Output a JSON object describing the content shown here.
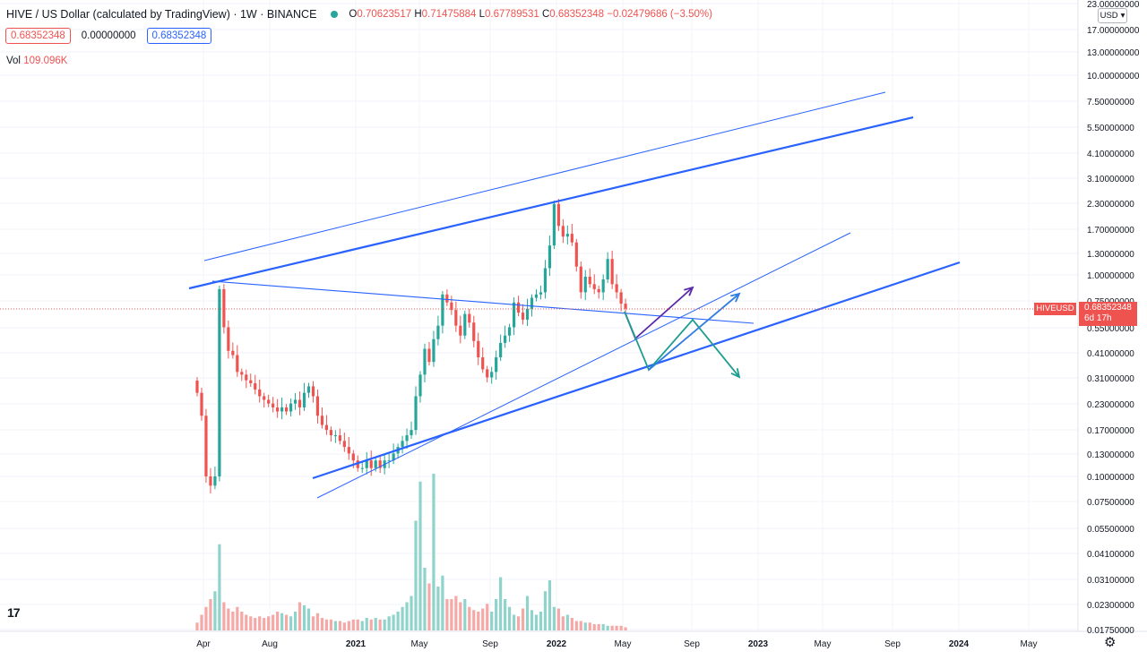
{
  "legend": {
    "symbol": "HIVE / US Dollar (calculated by TradingView) · 1W · BINANCE",
    "o_label": "O",
    "o": "0.70623517",
    "h_label": "H",
    "h": "0.71475884",
    "l_label": "L",
    "l": "0.67789531",
    "c_label": "C",
    "c": "0.68352348",
    "change": "−0.02479686 (−3.50%)"
  },
  "price_boxes": {
    "bid": "0.68352348",
    "spread": "0.00000000",
    "ask": "0.68352348"
  },
  "volume": {
    "label": "Vol",
    "value": "109.096K"
  },
  "currency_selector": "USD",
  "last_price": {
    "symbol": "HIVEUSD",
    "price": "0.68352348",
    "countdown": "6d 17h"
  },
  "colors": {
    "up": "#26a69a",
    "down": "#ef5350",
    "up_volume": "#8fd3cb",
    "down_volume": "#f5a8a6",
    "trendline": "#2962ff",
    "arrow_purple": "#5b2ba8",
    "arrow_green": "#1e9e8f",
    "arrow_blue": "#2f7de1"
  },
  "chart_data": {
    "type": "candlestick",
    "title": "HIVE / US Dollar (calculated by TradingView)",
    "interval": "1W",
    "exchange": "BINANCE",
    "y_scale": "log",
    "grid": true,
    "y_ticks": [
      "23.00000000",
      "17.00000000",
      "13.00000000",
      "10.00000000",
      "7.50000000",
      "5.50000000",
      "4.10000000",
      "3.10000000",
      "2.30000000",
      "1.70000000",
      "1.30000000",
      "1.00000000",
      "0.75000000",
      "0.55000000",
      "0.41000000",
      "0.31000000",
      "0.23000000",
      "0.17000000",
      "0.13000000",
      "0.10000000",
      "0.07500000",
      "0.05500000",
      "0.04100000",
      "0.03100000",
      "0.02300000",
      "0.01750000"
    ],
    "x_ticks": [
      "Apr",
      "Aug",
      "2021",
      "May",
      "Sep",
      "2022",
      "May",
      "Sep",
      "2023",
      "May",
      "Sep",
      "2024",
      "May"
    ],
    "closes": [
      0.26,
      0.2,
      0.1,
      0.09,
      0.1,
      0.85,
      0.55,
      0.42,
      0.4,
      0.33,
      0.32,
      0.3,
      0.29,
      0.27,
      0.25,
      0.24,
      0.23,
      0.22,
      0.21,
      0.22,
      0.21,
      0.23,
      0.24,
      0.22,
      0.26,
      0.28,
      0.25,
      0.2,
      0.18,
      0.17,
      0.16,
      0.16,
      0.15,
      0.14,
      0.13,
      0.12,
      0.11,
      0.11,
      0.12,
      0.11,
      0.12,
      0.11,
      0.12,
      0.12,
      0.13,
      0.14,
      0.15,
      0.16,
      0.17,
      0.25,
      0.32,
      0.43,
      0.37,
      0.48,
      0.56,
      0.8,
      0.73,
      0.67,
      0.56,
      0.5,
      0.64,
      0.58,
      0.47,
      0.39,
      0.34,
      0.31,
      0.33,
      0.39,
      0.46,
      0.5,
      0.55,
      0.73,
      0.65,
      0.6,
      0.68,
      0.77,
      0.8,
      0.82,
      1.08,
      1.4,
      2.25,
      1.75,
      1.55,
      1.6,
      1.45,
      1.1,
      0.82,
      0.98,
      0.9,
      0.85,
      0.82,
      0.95,
      1.2,
      0.9,
      0.82,
      0.72,
      0.68
    ],
    "volume_rel": [
      0.05,
      0.1,
      0.15,
      0.2,
      0.25,
      0.55,
      0.18,
      0.14,
      0.12,
      0.15,
      0.12,
      0.1,
      0.09,
      0.08,
      0.09,
      0.08,
      0.09,
      0.1,
      0.12,
      0.11,
      0.1,
      0.09,
      0.12,
      0.18,
      0.16,
      0.14,
      0.09,
      0.11,
      0.08,
      0.07,
      0.07,
      0.06,
      0.06,
      0.05,
      0.06,
      0.07,
      0.07,
      0.06,
      0.08,
      0.07,
      0.08,
      0.07,
      0.07,
      0.09,
      0.1,
      0.12,
      0.15,
      0.18,
      0.22,
      0.7,
      0.95,
      0.4,
      0.3,
      1.0,
      0.28,
      0.35,
      0.2,
      0.2,
      0.22,
      0.18,
      0.2,
      0.15,
      0.13,
      0.12,
      0.14,
      0.17,
      0.12,
      0.2,
      0.34,
      0.2,
      0.15,
      0.1,
      0.09,
      0.14,
      0.22,
      0.13,
      0.1,
      0.12,
      0.25,
      0.32,
      0.15,
      0.14,
      0.09,
      0.1,
      0.08,
      0.06,
      0.06,
      0.05,
      0.05,
      0.04,
      0.04,
      0.04,
      0.03,
      0.03,
      0.03,
      0.03,
      0.02
    ],
    "trendlines": [
      {
        "name": "outer upper channel"
      },
      {
        "name": "inner upper channel"
      },
      {
        "name": "descending neckline"
      },
      {
        "name": "inner lower channel"
      },
      {
        "name": "outer lower channel"
      }
    ]
  }
}
